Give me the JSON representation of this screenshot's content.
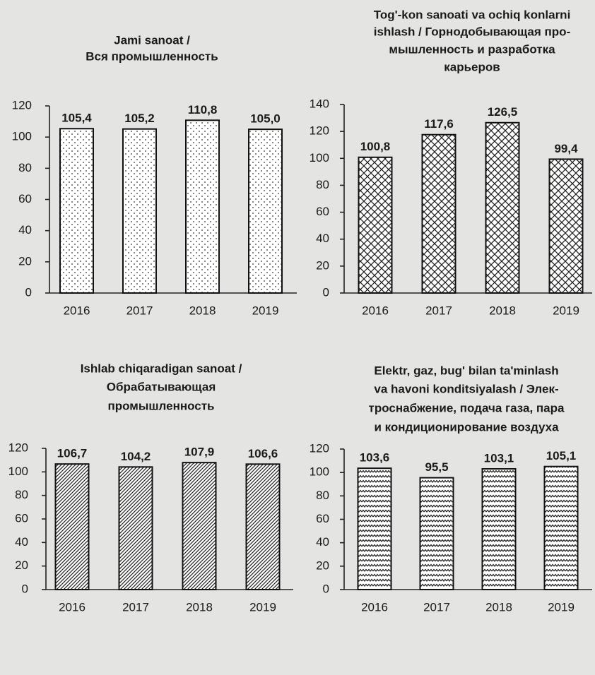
{
  "chart_data": [
    {
      "type": "bar",
      "title": [
        "Jami sanoat /",
        "Вся промышленность"
      ],
      "categories": [
        "2016",
        "2017",
        "2018",
        "2019"
      ],
      "values": [
        105.4,
        105.2,
        110.8,
        105.0
      ],
      "value_labels": [
        "105,4",
        "105,2",
        "110,8",
        "105,0"
      ],
      "ylim": [
        0,
        120
      ],
      "yticks": [
        0,
        20,
        40,
        60,
        80,
        100,
        120
      ],
      "pattern": "dots",
      "color": "#ffffff"
    },
    {
      "type": "bar",
      "title": [
        "Tog'-kon sanoati  va ochiq konlarni",
        "ishlash  / Горнодобывающая про-",
        "мышленность и разработка",
        "карьеров"
      ],
      "categories": [
        "2016",
        "2017",
        "2018",
        "2019"
      ],
      "values": [
        100.8,
        117.6,
        126.5,
        99.4
      ],
      "value_labels": [
        "100,8",
        "117,6",
        "126,5",
        "99,4"
      ],
      "ylim": [
        0,
        140
      ],
      "yticks": [
        0,
        20,
        40,
        60,
        80,
        100,
        120,
        140
      ],
      "pattern": "crosshatch",
      "color": "#ffffff"
    },
    {
      "type": "bar",
      "title": [
        "Ishlab chiqaradigan sanoat /",
        "Обрабатывающая",
        "промышленность"
      ],
      "categories": [
        "2016",
        "2017",
        "2018",
        "2019"
      ],
      "values": [
        106.7,
        104.2,
        107.9,
        106.6
      ],
      "value_labels": [
        "106,7",
        "104,2",
        "107,9",
        "106,6"
      ],
      "ylim": [
        0,
        120
      ],
      "yticks": [
        0,
        20,
        40,
        60,
        80,
        100,
        120
      ],
      "pattern": "diagonal",
      "color": "#ffffff"
    },
    {
      "type": "bar",
      "title": [
        "Elektr, gaz, bug' bilan ta'minlash",
        "va havoni konditsiyalash  / Элек-",
        "троснабжение, подача газа, пара",
        "и кондиционирование воздуха"
      ],
      "categories": [
        "2016",
        "2017",
        "2018",
        "2019"
      ],
      "values": [
        103.6,
        95.5,
        103.1,
        105.1
      ],
      "value_labels": [
        "103,6",
        "95,5",
        "103,1",
        "105,1"
      ],
      "ylim": [
        0,
        120
      ],
      "yticks": [
        0,
        20,
        40,
        60,
        80,
        100,
        120
      ],
      "pattern": "zigzag",
      "color": "#ffffff"
    }
  ]
}
